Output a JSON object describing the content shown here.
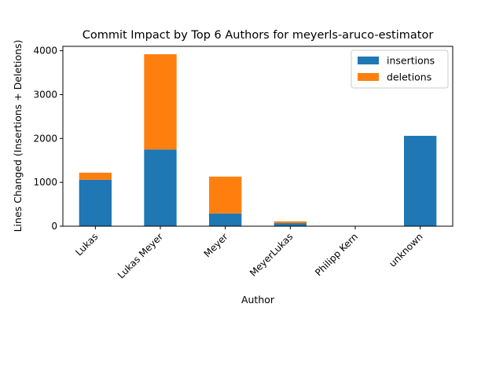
{
  "chart_data": {
    "type": "bar",
    "stacked": true,
    "title": "Commit Impact by Top 6 Authors for meyerls-aruco-estimator",
    "xlabel": "Author",
    "ylabel": "Lines Changed (Insertions + Deletions)",
    "categories": [
      "Lukas",
      "Lukas Meyer",
      "Meyer",
      "MeyerLukas",
      "Philipp Kern",
      "unknown"
    ],
    "series": [
      {
        "name": "insertions",
        "color": "#1f77b4",
        "values": [
          1060,
          1750,
          290,
          70,
          0,
          2060
        ]
      },
      {
        "name": "deletions",
        "color": "#ff7f0e",
        "values": [
          160,
          2170,
          840,
          40,
          0,
          0
        ]
      }
    ],
    "ylim": [
      0,
      4100
    ],
    "yticks": [
      0,
      1000,
      2000,
      3000,
      4000
    ],
    "grid": false,
    "legend_position": "upper-right"
  }
}
